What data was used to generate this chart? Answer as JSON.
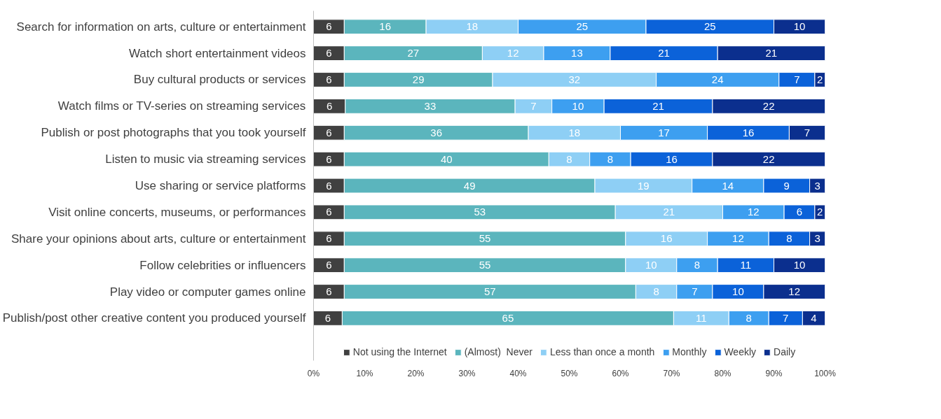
{
  "chart_data": {
    "type": "bar",
    "orientation": "horizontal",
    "stacked": true,
    "categories": [
      "Search for information on arts, culture or entertainment",
      "Watch short entertainment videos",
      "Buy cultural products or services",
      "Watch films or TV-series on streaming services",
      "Publish or post photographs that you took yourself",
      "Listen to music via streaming services",
      "Use sharing or service platforms",
      "Visit online concerts, museums, or performances",
      "Share your opinions about arts, culture or entertainment",
      "Follow celebrities or influencers",
      "Play video or computer games online",
      "Publish/post other creative content you produced yourself"
    ],
    "series": [
      {
        "name": "Not using the Internet",
        "color": "#404040",
        "values": [
          6,
          6,
          6,
          6.2,
          6,
          6,
          6,
          6,
          6,
          6,
          6,
          5.6
        ],
        "value_labels": [
          "6",
          "6",
          "6",
          "6",
          "6",
          "6",
          "6",
          "6",
          "6",
          "6",
          "6",
          "6"
        ]
      },
      {
        "name": "(Almost)  Never",
        "color": "#5bb5bd",
        "values": [
          16,
          27,
          29,
          33.2,
          36,
          40,
          49,
          53,
          55,
          55,
          57,
          64.8
        ],
        "value_labels": [
          "16",
          "27",
          "29",
          "33",
          "36",
          "40",
          "49",
          "53",
          "55",
          "55",
          "57",
          "65"
        ]
      },
      {
        "name": "Less than once a month",
        "color": "#8ecff5",
        "values": [
          18,
          12,
          32,
          7.2,
          18,
          8,
          19,
          21,
          16,
          10,
          8,
          10.8
        ],
        "value_labels": [
          "18",
          "12",
          "32",
          "7",
          "18",
          "8",
          "19",
          "21",
          "16",
          "10",
          "8",
          "11"
        ]
      },
      {
        "name": "Monthly",
        "color": "#3d9ff0",
        "values": [
          25,
          13,
          24,
          10.2,
          17,
          8,
          14,
          12,
          12,
          8,
          7,
          7.8
        ],
        "value_labels": [
          "25",
          "13",
          "24",
          "10",
          "17",
          "8",
          "14",
          "12",
          "12",
          "8",
          "7",
          "8"
        ]
      },
      {
        "name": "Weekly",
        "color": "#0b62d9",
        "values": [
          25,
          21,
          7,
          21.2,
          16,
          16,
          9,
          6,
          8,
          11,
          10,
          6.6
        ],
        "value_labels": [
          "25",
          "21",
          "7",
          "21",
          "16",
          "16",
          "9",
          "6",
          "8",
          "11",
          "10",
          "7"
        ]
      },
      {
        "name": "Daily",
        "color": "#0b2f8e",
        "values": [
          10,
          21,
          2,
          22.0,
          7,
          22,
          3,
          2,
          3,
          10,
          12,
          4.4
        ],
        "value_labels": [
          "10",
          "21",
          "2",
          "22",
          "7",
          "22",
          "3",
          "2",
          "3",
          "10",
          "12",
          "4"
        ]
      }
    ],
    "xlim": [
      0,
      100
    ],
    "xticks": [
      {
        "value": 0,
        "label": "0%"
      },
      {
        "value": 10,
        "label": "10%"
      },
      {
        "value": 20,
        "label": "20%"
      },
      {
        "value": 30,
        "label": "30%"
      },
      {
        "value": 40,
        "label": "40%"
      },
      {
        "value": 50,
        "label": "50%"
      },
      {
        "value": 60,
        "label": "60%"
      },
      {
        "value": 70,
        "label": "70%"
      },
      {
        "value": 80,
        "label": "80%"
      },
      {
        "value": 90,
        "label": "90%"
      },
      {
        "value": 100,
        "label": "100%"
      }
    ],
    "legend": "bottom",
    "grid": false
  }
}
